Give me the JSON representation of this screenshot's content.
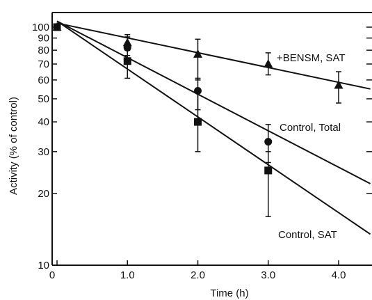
{
  "chart_data": {
    "type": "scatter",
    "title": "",
    "xlabel": "Time (h)",
    "ylabel": "Activity (% of control)",
    "xlim": [
      0,
      4.45
    ],
    "ylim": [
      10,
      120
    ],
    "yscale": "log",
    "grid": false,
    "legend": "none",
    "x_ticks": [
      {
        "value": 0,
        "label": "0"
      },
      {
        "value": 1,
        "label": "1.0"
      },
      {
        "value": 2,
        "label": "2.0"
      },
      {
        "value": 3,
        "label": "3.0"
      },
      {
        "value": 4,
        "label": "4.0"
      }
    ],
    "y_ticks": [
      {
        "value": 10,
        "label": "10"
      },
      {
        "value": 20,
        "label": "20"
      },
      {
        "value": 30,
        "label": "30"
      },
      {
        "value": 40,
        "label": "40"
      },
      {
        "value": 50,
        "label": "50"
      },
      {
        "value": 60,
        "label": "60"
      },
      {
        "value": 70,
        "label": "70"
      },
      {
        "value": 80,
        "label": "80"
      },
      {
        "value": 90,
        "label": "90"
      },
      {
        "value": 100,
        "label": "100"
      }
    ],
    "series": [
      {
        "name": "+BENSM, SAT",
        "marker": "triangle",
        "x": [
          0,
          1,
          2,
          3,
          4
        ],
        "y": [
          100,
          86,
          77,
          70,
          57
        ],
        "err_low": [
          null,
          76,
          60,
          63,
          48
        ],
        "err_high": [
          null,
          93,
          89,
          78,
          65
        ],
        "fit": {
          "x": [
            0,
            4.45
          ],
          "y": [
            104,
            55
          ]
        }
      },
      {
        "name": "Control, Total",
        "marker": "circle",
        "x": [
          0,
          1,
          2,
          3
        ],
        "y": [
          100,
          82,
          54,
          33
        ],
        "err_low": [
          null,
          72,
          45,
          27
        ],
        "err_high": [
          null,
          91,
          61,
          39
        ],
        "fit": {
          "x": [
            0,
            4.45
          ],
          "y": [
            106,
            22
          ]
        }
      },
      {
        "name": "Control, SAT",
        "marker": "square",
        "x": [
          0,
          1,
          2,
          3
        ],
        "y": [
          100,
          72,
          40,
          25
        ],
        "err_low": [
          null,
          61,
          30,
          16
        ],
        "err_high": [
          null,
          80,
          53,
          30
        ],
        "fit": {
          "x": [
            0,
            4.45
          ],
          "y": [
            106,
            13.5
          ]
        }
      }
    ]
  }
}
